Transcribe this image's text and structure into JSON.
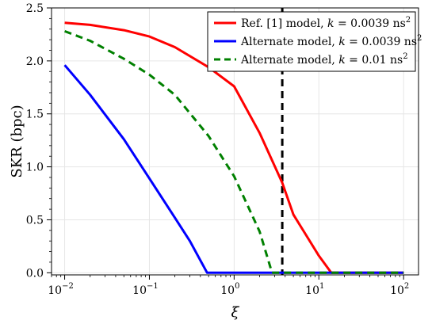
{
  "chart_data": {
    "type": "line",
    "xlabel": "ξ",
    "ylabel": "SKR (bpc)",
    "xscale": "log",
    "xlim": [
      0.007,
      150
    ],
    "ylim": [
      -0.02,
      2.5
    ],
    "grid": true,
    "legend_position": "top-right",
    "x_ticks": [
      {
        "value": 0.01,
        "mantissa": "10",
        "exp": "−2"
      },
      {
        "value": 0.1,
        "mantissa": "10",
        "exp": "−1"
      },
      {
        "value": 1,
        "mantissa": "10",
        "exp": "0"
      },
      {
        "value": 10,
        "mantissa": "10",
        "exp": "1"
      },
      {
        "value": 100,
        "mantissa": "10",
        "exp": "2"
      }
    ],
    "y_ticks": [
      {
        "value": 0.0,
        "label": "0.0"
      },
      {
        "value": 0.5,
        "label": "0.5"
      },
      {
        "value": 1.0,
        "label": "1.0"
      },
      {
        "value": 1.5,
        "label": "1.5"
      },
      {
        "value": 2.0,
        "label": "2.0"
      },
      {
        "value": 2.5,
        "label": "2.5"
      }
    ],
    "vline": {
      "x": 3.7,
      "color": "#000000",
      "style": "dashed"
    },
    "series": [
      {
        "name": "Ref. [1] model, k = 0.0039 ns²",
        "label_parts": {
          "prefix": "Ref. [1] model, ",
          "k": "k",
          "value": " = 0.0039 ns",
          "sup": "2"
        },
        "color": "#ff0000",
        "style": "solid",
        "x": [
          0.01,
          0.02,
          0.05,
          0.1,
          0.2,
          0.5,
          1,
          2,
          3.7,
          5,
          10,
          14,
          100
        ],
        "y": [
          2.36,
          2.34,
          2.29,
          2.23,
          2.13,
          1.94,
          1.76,
          1.32,
          0.85,
          0.55,
          0.16,
          0.0,
          0.0
        ]
      },
      {
        "name": "Alternate model, k = 0.0039 ns²",
        "label_parts": {
          "prefix": "Alternate model, ",
          "k": "k",
          "value": " = 0.0039 ns",
          "sup": "2"
        },
        "color": "#0000ff",
        "style": "solid",
        "x": [
          0.01,
          0.02,
          0.05,
          0.1,
          0.2,
          0.3,
          0.48,
          1,
          10,
          100
        ],
        "y": [
          1.96,
          1.68,
          1.26,
          0.89,
          0.52,
          0.3,
          0.0,
          0.0,
          0.0,
          0.0
        ]
      },
      {
        "name": "Alternate model, k = 0.01 ns²",
        "label_parts": {
          "prefix": "Alternate model, ",
          "k": "k",
          "value": " = 0.01 ns",
          "sup": "2"
        },
        "color": "#008000",
        "style": "dashed",
        "x": [
          0.01,
          0.02,
          0.05,
          0.1,
          0.2,
          0.5,
          1,
          2,
          2.8,
          5,
          10,
          100
        ],
        "y": [
          2.28,
          2.19,
          2.02,
          1.87,
          1.68,
          1.29,
          0.91,
          0.39,
          0.0,
          0.0,
          0.0,
          0.0
        ]
      }
    ]
  }
}
